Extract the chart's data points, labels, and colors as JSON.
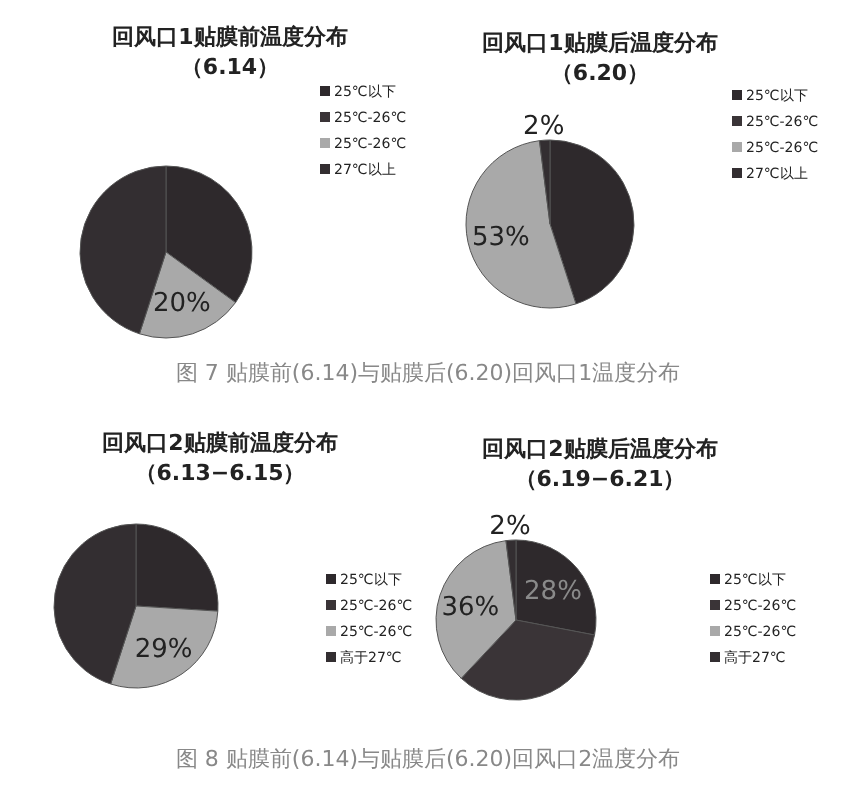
{
  "chart_data": [
    {
      "type": "pie",
      "title": "回风口1贴膜前温度分布",
      "subtitle": "（6.14）",
      "categories": [
        "25℃以下",
        "25℃-26℃",
        "25℃-26℃",
        "27℃以上"
      ],
      "values": [
        35,
        0,
        20,
        45
      ],
      "colors": [
        "#2e292c",
        "#3a3437",
        "#a9a9a9",
        "#332e31"
      ],
      "value_labels": [
        null,
        null,
        "20%",
        null
      ],
      "legend": "top right"
    },
    {
      "type": "pie",
      "title": "回风口1贴膜后温度分布",
      "subtitle": "（6.20）",
      "categories": [
        "25℃以下",
        "25℃-26℃",
        "25℃-26℃",
        "27℃以上"
      ],
      "values": [
        45,
        0,
        53,
        2
      ],
      "colors": [
        "#2e292c",
        "#3a3437",
        "#a9a9a9",
        "#332e31"
      ],
      "value_labels": [
        null,
        null,
        "53%",
        "2%"
      ],
      "legend": "top right",
      "annotations": [
        "图 7   贴膜前(6.14)与贴膜后(6.20)回风口1温度分布"
      ]
    },
    {
      "type": "pie",
      "title": "回风口2贴膜前温度分布",
      "subtitle": "（6.13−6.15）",
      "categories": [
        "25℃以下",
        "25℃-26℃",
        "25℃-26℃",
        "高于27℃"
      ],
      "values": [
        26,
        0,
        29,
        45
      ],
      "colors": [
        "#2e292c",
        "#3a3437",
        "#a9a9a9",
        "#332e31"
      ],
      "value_labels": [
        null,
        null,
        "29%",
        null
      ],
      "legend": "right"
    },
    {
      "type": "pie",
      "title": "回风口2贴膜后温度分布",
      "subtitle": "（6.19−6.21）",
      "categories": [
        "25℃以下",
        "25℃-26℃",
        "25℃-26℃",
        "高于27℃"
      ],
      "values": [
        28,
        34,
        36,
        2
      ],
      "colors": [
        "#2e292c",
        "#3a3437",
        "#a9a9a9",
        "#332e31"
      ],
      "value_labels": [
        "28%",
        null,
        "36%",
        "2%"
      ],
      "legend": "right",
      "annotations": [
        "图 8   贴膜前(6.14)与贴膜后(6.20)回风口2温度分布"
      ]
    }
  ]
}
